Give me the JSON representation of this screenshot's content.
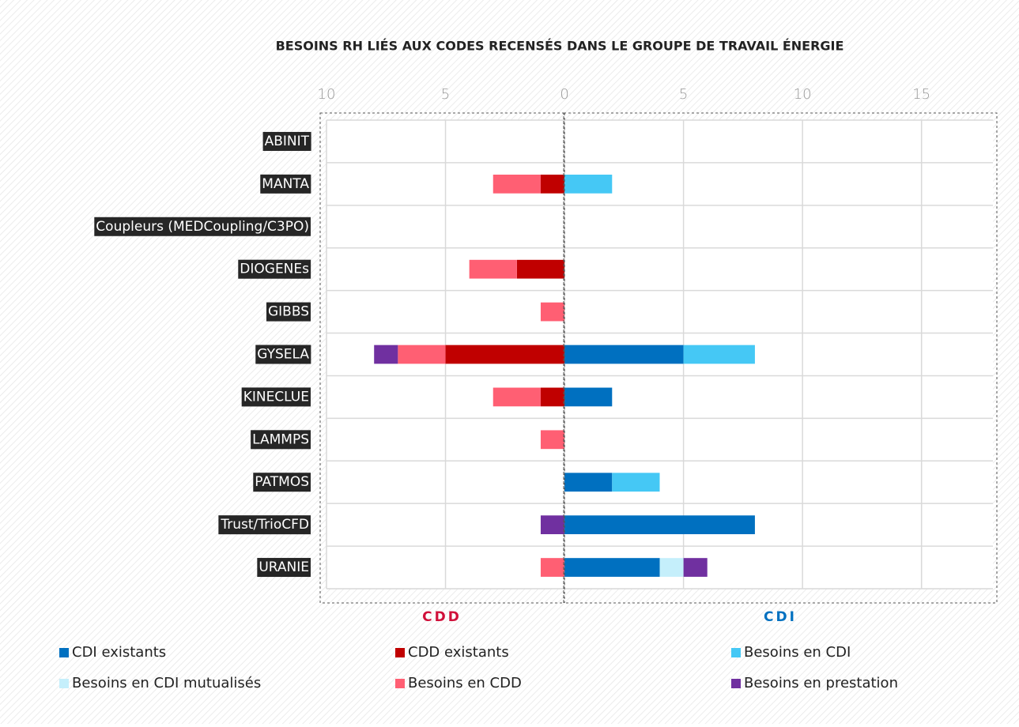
{
  "chart_data": {
    "type": "diverging-stacked-bar",
    "title": "BESOINS RH LIÉS AUX CODES RECENSÉS DANS LE GROUPE DE TRAVAIL ÉNERGIE",
    "categories": [
      "ABINIT",
      "MANTA",
      "Coupleurs (MEDCoupling/C3PO)",
      "DIOGENEs",
      "GIBBS",
      "GYSELA",
      "KINECLUE",
      "LAMMPS",
      "PATMOS",
      "Trust/TrioCFD",
      "URANIE"
    ],
    "series": [
      {
        "name": "CDI existants",
        "color": "#0070c0",
        "values": [
          0,
          0,
          0,
          0,
          0,
          5,
          2,
          0,
          2,
          8,
          4
        ]
      },
      {
        "name": "CDD existants",
        "color": "#c00000",
        "values": [
          0,
          -1,
          0,
          -2,
          0,
          -5,
          -1,
          0,
          0,
          0,
          0
        ]
      },
      {
        "name": "Besoins en CDI",
        "color": "#45c8f5",
        "values": [
          0,
          2,
          0,
          0,
          0,
          3,
          0,
          0,
          2,
          0,
          0
        ]
      },
      {
        "name": "Besoins en CDI mutualisés",
        "color": "#c5effb",
        "values": [
          0,
          0,
          0,
          0,
          0,
          0,
          0,
          0,
          0,
          0,
          1
        ]
      },
      {
        "name": "Besoins en CDD",
        "color": "#ff5f73",
        "values": [
          0,
          -2,
          0,
          -2,
          -1,
          -2,
          -2,
          -1,
          0,
          0,
          -1
        ]
      },
      {
        "name": "Besoins en prestation",
        "color": "#7030a0",
        "values": [
          0,
          0,
          0,
          0,
          0,
          -1,
          0,
          0,
          0,
          -1,
          1
        ]
      }
    ],
    "xlim": [
      -10,
      18
    ],
    "xticks": [
      {
        "value": -10,
        "label": "10"
      },
      {
        "value": -5,
        "label": "5"
      },
      0,
      5,
      10,
      15
    ],
    "grid": true,
    "annotations": [
      {
        "text": "CDD",
        "color": "#d0103a"
      },
      {
        "text": "CDI",
        "color": "#0070c0"
      }
    ]
  }
}
